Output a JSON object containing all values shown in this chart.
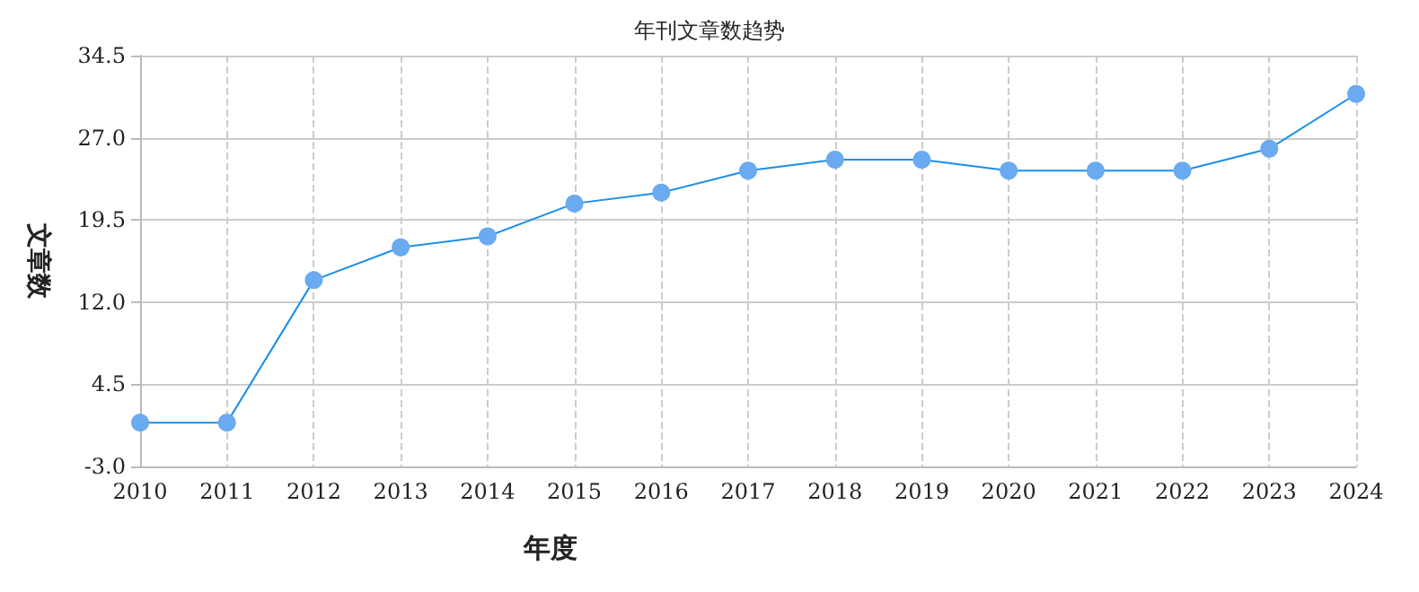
{
  "chart_data": {
    "type": "line",
    "title": "年刊文章数趋势",
    "xlabel": "年度",
    "ylabel": "文章数",
    "categories": [
      "2010",
      "2011",
      "2012",
      "2013",
      "2014",
      "2015",
      "2016",
      "2017",
      "2018",
      "2019",
      "2020",
      "2021",
      "2022",
      "2023",
      "2024"
    ],
    "series": [
      {
        "color": "#1a8fe8",
        "values": [
          1,
          1,
          14,
          17,
          18,
          21,
          22,
          24,
          25,
          25,
          24,
          24,
          24,
          26,
          31
        ]
      }
    ],
    "ylim": [
      -3,
      34.5
    ],
    "yticks": [
      {
        "value": -3,
        "label": "-3.0"
      },
      4.5,
      {
        "value": 12,
        "label": "12.0"
      },
      19.5,
      {
        "value": 27,
        "label": "27.0"
      },
      34.5
    ],
    "grid": true,
    "marker": "circle",
    "line_style": "solid"
  }
}
